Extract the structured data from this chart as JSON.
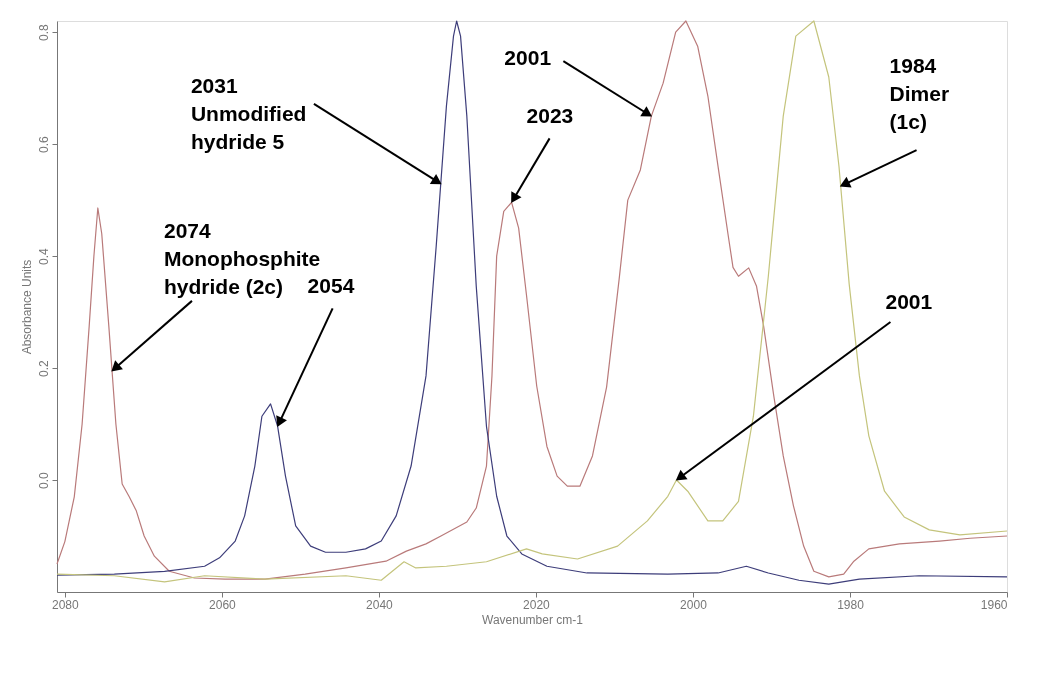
{
  "chart_data": {
    "type": "line",
    "xlabel": "Wavenumber cm-1",
    "ylabel": "Absorbance Units",
    "xlim": [
      2081,
      1960
    ],
    "xticks": [
      2080,
      2060,
      2040,
      2020,
      2000,
      1980,
      1960
    ],
    "ylim": [
      -0.2,
      0.82
    ],
    "yticks": [
      {
        "value": 0,
        "label": "0.0"
      },
      0.2,
      0.4,
      0.6,
      0.8
    ],
    "grid": false,
    "legend": false,
    "marker": "none",
    "line_style": "solid",
    "series": [
      {
        "color": "#b97a7a",
        "x": [
          2081,
          2080,
          2078.8,
          2077.8,
          2076.9,
          2076.3,
          2075.8,
          2075.3,
          2074.4,
          2073.5,
          2072.7,
          2071.8,
          2070.9,
          2069.9,
          2068.6,
          2066.7,
          2063.5,
          2059.6,
          2054.5,
          2049.4,
          2044.2,
          2039.1,
          2036.5,
          2034.0,
          2032.1,
          2028.8,
          2027.6,
          2026.3,
          2025.6,
          2025.0,
          2024.1,
          2023.1,
          2022.2,
          2021.2,
          2019.9,
          2018.6,
          2017.3,
          2016.0,
          2014.4,
          2012.8,
          2011.0,
          2009.4,
          2008.3,
          2006.7,
          2005.3,
          2003.8,
          2002.2,
          2000.9,
          1999.4,
          1998.1,
          1996.8,
          1995.5,
          1994.9,
          1994.2,
          1992.9,
          1991.9,
          1991.0,
          1989.7,
          1988.5,
          1987.2,
          1985.9,
          1984.6,
          1982.7,
          1980.8,
          1979.5,
          1977.6,
          1973.7,
          1968.6,
          1964.7,
          1960
        ],
        "values": [
          -0.15,
          -0.11,
          -0.03,
          0.1,
          0.275,
          0.4,
          0.486,
          0.44,
          0.275,
          0.1,
          -0.007,
          -0.03,
          -0.055,
          -0.1,
          -0.136,
          -0.163,
          -0.175,
          -0.177,
          -0.177,
          -0.168,
          -0.157,
          -0.145,
          -0.127,
          -0.114,
          -0.1,
          -0.075,
          -0.05,
          0.025,
          0.186,
          0.4,
          0.48,
          0.496,
          0.45,
          0.33,
          0.168,
          0.06,
          0.007,
          -0.011,
          -0.011,
          0.043,
          0.166,
          0.359,
          0.5,
          0.554,
          0.65,
          0.709,
          0.8,
          0.82,
          0.775,
          0.686,
          0.56,
          0.436,
          0.38,
          0.364,
          0.379,
          0.346,
          0.275,
          0.15,
          0.043,
          -0.046,
          -0.118,
          -0.163,
          -0.173,
          -0.168,
          -0.145,
          -0.123,
          -0.114,
          -0.109,
          -0.104,
          -0.1
        ]
      },
      {
        "color": "#3d3d7a",
        "x": [
          2081,
          2073.7,
          2067.3,
          2062.2,
          2060.3,
          2058.3,
          2057.1,
          2055.8,
          2054.9,
          2053.8,
          2052.9,
          2051.9,
          2050.6,
          2048.7,
          2046.8,
          2044.2,
          2041.7,
          2039.7,
          2037.8,
          2035.9,
          2034.0,
          2032.7,
          2031.4,
          2030.5,
          2030.1,
          2029.6,
          2028.8,
          2027.6,
          2026.3,
          2025.0,
          2023.7,
          2021.8,
          2018.6,
          2013.5,
          2003.2,
          1996.8,
          1993.2,
          1990.4,
          1986.5,
          1982.7,
          1978.8,
          1971.2,
          1960
        ],
        "values": [
          -0.17,
          -0.168,
          -0.163,
          -0.154,
          -0.139,
          -0.109,
          -0.064,
          0.025,
          0.114,
          0.136,
          0.096,
          0.007,
          -0.082,
          -0.118,
          -0.129,
          -0.129,
          -0.123,
          -0.109,
          -0.064,
          0.025,
          0.186,
          0.418,
          0.668,
          0.793,
          0.82,
          0.793,
          0.65,
          0.346,
          0.096,
          -0.029,
          -0.1,
          -0.132,
          -0.154,
          -0.166,
          -0.168,
          -0.166,
          -0.154,
          -0.166,
          -0.179,
          -0.186,
          -0.177,
          -0.171,
          -0.173
        ]
      },
      {
        "color": "#c4c47c",
        "x": [
          2081,
          2073.7,
          2067.3,
          2062.2,
          2054.5,
          2044.2,
          2039.7,
          2036.8,
          2035.3,
          2031.4,
          2026.3,
          2021.2,
          2019.2,
          2014.7,
          2009.6,
          2005.8,
          2003.2,
          2002.1,
          2000.6,
          1998.1,
          1996.2,
          1994.2,
          1992.3,
          1990.4,
          1988.5,
          1986.9,
          1984.6,
          1982.7,
          1981.4,
          1980.1,
          1978.8,
          1977.6,
          1975.6,
          1973.1,
          1969.9,
          1966.0,
          1960
        ],
        "values": [
          -0.168,
          -0.171,
          -0.182,
          -0.171,
          -0.177,
          -0.171,
          -0.179,
          -0.146,
          -0.157,
          -0.154,
          -0.146,
          -0.123,
          -0.132,
          -0.141,
          -0.118,
          -0.073,
          -0.029,
          0.0,
          -0.021,
          -0.073,
          -0.073,
          -0.038,
          0.114,
          0.364,
          0.65,
          0.793,
          0.82,
          0.72,
          0.56,
          0.35,
          0.186,
          0.079,
          -0.02,
          -0.066,
          -0.089,
          -0.098,
          -0.091
        ]
      }
    ],
    "annotations": [
      {
        "text": "2074\nMonophosphite\nhydride (2c)",
        "x": 2074.0,
        "y": 0.195
      },
      {
        "text": "2054",
        "x": 2052.9,
        "y": 0.096
      },
      {
        "text": "2031\nUnmodified\nhydride 5",
        "x": 2032.1,
        "y": 0.529
      },
      {
        "text": "2023",
        "x": 2023.1,
        "y": 0.496
      },
      {
        "text": "2001",
        "x": 2005.3,
        "y": 0.65
      },
      {
        "text": "1984\nDimer\n(1c)",
        "x": 1981.2,
        "y": 0.525
      },
      {
        "text": "2001",
        "x": 2002.1,
        "y": 0.0
      }
    ]
  }
}
